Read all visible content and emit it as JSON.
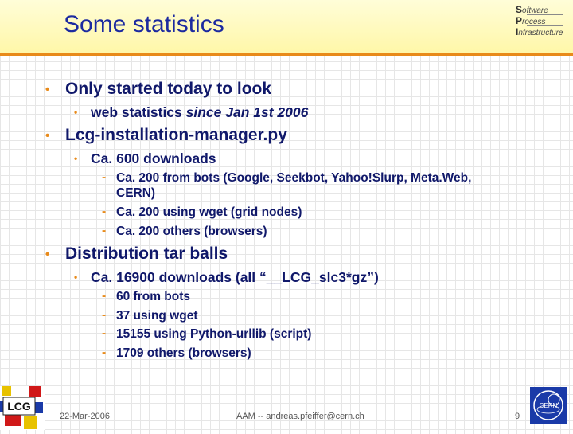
{
  "slide": {
    "title": "Some statistics",
    "logo_top_right": {
      "lines": [
        "Software",
        "Process",
        "Infrastructure"
      ],
      "cap_letters": [
        "S",
        "P",
        "I"
      ],
      "rest": [
        "oftware",
        "rocess",
        "nfrastructure"
      ]
    },
    "bullets": [
      {
        "text": "Only started today to look",
        "sub": [
          {
            "prefix": "web statistics ",
            "italic": "since Jan 1st 2006"
          }
        ]
      },
      {
        "text": "Lcg-installation-manager.py",
        "sub": [
          {
            "text": "Ca. 600 downloads",
            "sub": [
              "Ca. 200 from bots (Google, Seekbot, Yahoo!Slurp, Meta.Web,",
              "CERN)",
              "Ca. 200 using wget (grid nodes)",
              "Ca. 200 others (browsers)"
            ]
          }
        ]
      },
      {
        "text": "Distribution tar balls",
        "sub": [
          {
            "text": "Ca. 16900 downloads (all “__LCG_slc3*gz”)",
            "sub": [
              "60 from bots",
              "37 using wget",
              "15155 using Python-urllib (script)",
              "1709 others (browsers)"
            ]
          }
        ]
      }
    ],
    "bullet_glyph": "•",
    "dash_glyph": "-",
    "footer": {
      "date": "22-Mar-2006",
      "author": "AAM -- andreas.pfeiffer@cern.ch",
      "page": "9"
    },
    "logos": {
      "bottom_left": "LCG",
      "bottom_right": "CERN"
    },
    "colors": {
      "text": "#10186a",
      "title": "#1c2aa0",
      "bullet": "#e88a1a",
      "header_bg": "#fff7a8",
      "header_rule": "#e88a1a"
    }
  }
}
